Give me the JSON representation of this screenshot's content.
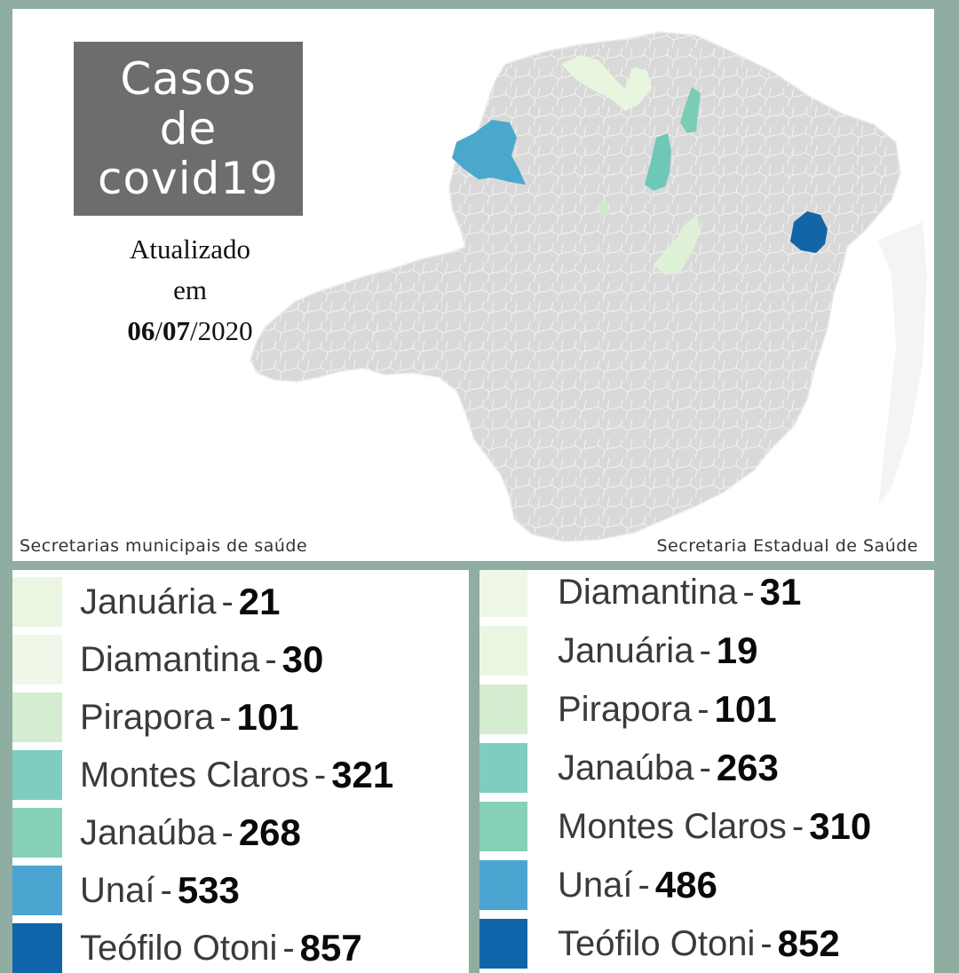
{
  "title": [
    "Casos",
    "de",
    "covid19"
  ],
  "updated": {
    "line1": "Atualizado",
    "line2": "em",
    "date_day": "06",
    "date_month": "07",
    "date_year": "2020"
  },
  "sources": {
    "left": "Secretarias municipais de saúde",
    "right": "Secretaria Estadual de Saúde"
  },
  "colors": {
    "background": "#8fada0",
    "map_base": "#d9d9d9",
    "map_border": "#f4f4f4"
  },
  "highlighted_regions": [
    {
      "name": "Unaí",
      "color": "#4aa8cc"
    },
    {
      "name": "Teófilo Otoni",
      "color": "#1266a8"
    },
    {
      "name": "Montes Claros",
      "color": "#78cdb4"
    },
    {
      "name": "Janaúba",
      "color": "#6fc7b8"
    },
    {
      "name": "Pirapora",
      "color": "#cfeacb"
    },
    {
      "name": "Januária",
      "color": "#e8f5df"
    },
    {
      "name": "Diamantina",
      "color": "#eef7e6"
    }
  ],
  "legend_left": [
    {
      "name": "Januária",
      "sep": "-",
      "value": "21",
      "color": "#eaf6e2"
    },
    {
      "name": "Diamantina",
      "sep": "-",
      "value": "30",
      "color": "#eef7e8"
    },
    {
      "name": "Pirapora",
      "sep": "-",
      "value": "101",
      "color": "#d4eccf"
    },
    {
      "name": "Montes Claros",
      "sep": "-",
      "value": "321",
      "color": "#7ecdc0"
    },
    {
      "name": "Janaúba",
      "sep": "-",
      "value": "268",
      "color": "#86d1b6"
    },
    {
      "name": "Unaí",
      "sep": "-",
      "value": "533",
      "color": "#4aa6d0"
    },
    {
      "name": "Teófilo Otoni",
      "sep": "-",
      "value": "857",
      "color": "#0f65aa"
    }
  ],
  "legend_right": [
    {
      "name": "Diamantina",
      "sep": "-",
      "value": "31",
      "color": "#eef7e8"
    },
    {
      "name": "Januária",
      "sep": "-",
      "value": "19",
      "color": "#eaf6e2"
    },
    {
      "name": "Pirapora",
      "sep": "-",
      "value": "101",
      "color": "#d4eccf"
    },
    {
      "name": "Janaúba",
      "sep": "-",
      "value": "263",
      "color": "#7ecdc0"
    },
    {
      "name": "Montes Claros",
      "sep": "-",
      "value": "310",
      "color": "#86d1b6"
    },
    {
      "name": "Unaí",
      "sep": "-",
      "value": "486",
      "color": "#4aa6d0"
    },
    {
      "name": "Teófilo Otoni",
      "sep": "-",
      "value": "852",
      "color": "#0f65aa"
    }
  ]
}
